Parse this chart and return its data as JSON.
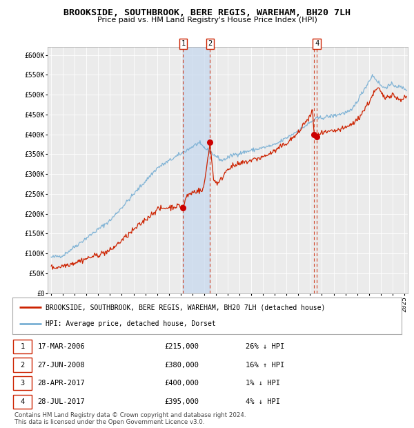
{
  "title": "BROOKSIDE, SOUTHBROOK, BERE REGIS, WAREHAM, BH20 7LH",
  "subtitle": "Price paid vs. HM Land Registry's House Price Index (HPI)",
  "hpi_color": "#7ab0d4",
  "price_color": "#cc2200",
  "dot_color": "#cc0000",
  "background_color": "#ffffff",
  "plot_bg_color": "#ebebeb",
  "grid_color": "#ffffff",
  "ylim": [
    0,
    620000
  ],
  "yticks": [
    0,
    50000,
    100000,
    150000,
    200000,
    250000,
    300000,
    350000,
    400000,
    450000,
    500000,
    550000,
    600000
  ],
  "ytick_labels": [
    "£0",
    "£50K",
    "£100K",
    "£150K",
    "£200K",
    "£250K",
    "£300K",
    "£350K",
    "£400K",
    "£450K",
    "£500K",
    "£550K",
    "£600K"
  ],
  "xlim_start": 1994.7,
  "xlim_end": 2025.3,
  "transactions": [
    {
      "num": 1,
      "date": "17-MAR-2006",
      "year": 2006.21,
      "price": 215000,
      "pct": "26%",
      "dir": "↓"
    },
    {
      "num": 2,
      "date": "27-JUN-2008",
      "year": 2008.49,
      "price": 380000,
      "pct": "16%",
      "dir": "↑"
    },
    {
      "num": 3,
      "date": "28-APR-2017",
      "year": 2017.32,
      "price": 400000,
      "pct": "1%",
      "dir": "↓"
    },
    {
      "num": 4,
      "date": "28-JUL-2017",
      "year": 2017.57,
      "price": 395000,
      "pct": "4%",
      "dir": "↓"
    }
  ],
  "shade_x1": 2006.21,
  "shade_x2": 2008.49,
  "legend_line1": "BROOKSIDE, SOUTHBROOK, BERE REGIS, WAREHAM, BH20 7LH (detached house)",
  "legend_line2": "HPI: Average price, detached house, Dorset",
  "footer1": "Contains HM Land Registry data © Crown copyright and database right 2024.",
  "footer2": "This data is licensed under the Open Government Licence v3.0.",
  "table_rows": [
    [
      "1",
      "17-MAR-2006",
      "£215,000",
      "26% ↓ HPI"
    ],
    [
      "2",
      "27-JUN-2008",
      "£380,000",
      "16% ↑ HPI"
    ],
    [
      "3",
      "28-APR-2017",
      "£400,000",
      "1% ↓ HPI"
    ],
    [
      "4",
      "28-JUL-2017",
      "£395,000",
      "4% ↓ HPI"
    ]
  ]
}
